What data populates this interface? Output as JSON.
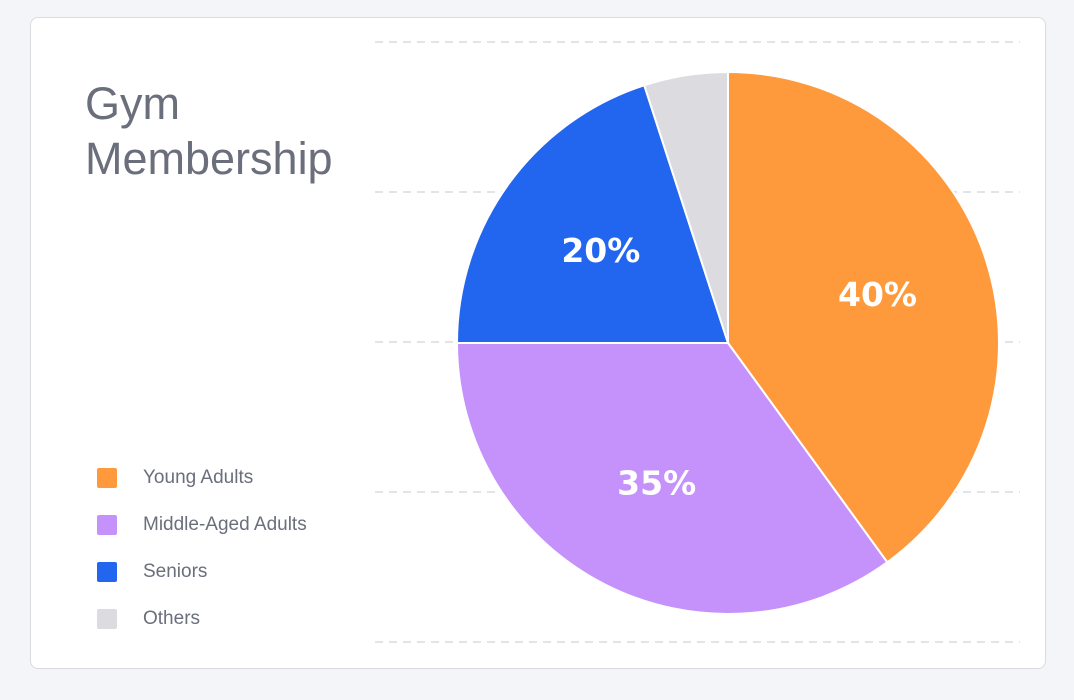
{
  "chart_data": {
    "type": "pie",
    "title": "Gym Membership",
    "categories": [
      "Young Adults",
      "Middle-Aged Adults",
      "Seniors",
      "Others"
    ],
    "values": [
      40,
      35,
      20,
      5
    ],
    "data_labels": [
      "40%",
      "35%",
      "20%",
      ""
    ],
    "colors": [
      "#ff9a3c",
      "#c592fc",
      "#2266f0",
      "#dcdbdf"
    ],
    "legend_position": "bottom-left",
    "grid": true
  }
}
